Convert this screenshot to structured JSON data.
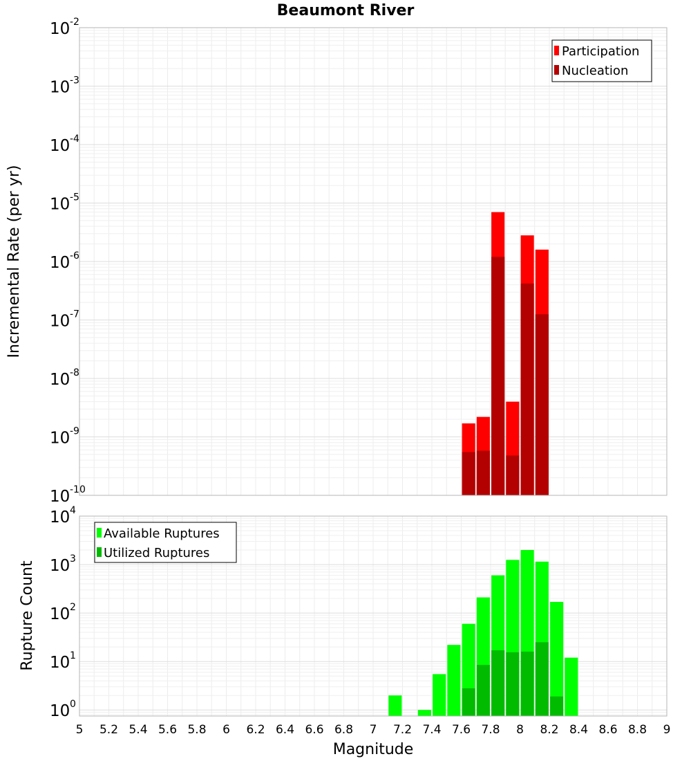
{
  "chart_data": [
    {
      "type": "bar",
      "title": "Beaumont River",
      "xlabel": "",
      "ylabel": "Incremental Rate (per yr)",
      "xlim": [
        5,
        9
      ],
      "ylim": [
        1e-10,
        0.01
      ],
      "yscale": "log",
      "grid": true,
      "legend_position": "top-right",
      "yticks": [
        {
          "base": "10",
          "exp": "-10",
          "value": 1e-10
        },
        {
          "base": "10",
          "exp": "-9",
          "value": 1e-09
        },
        {
          "base": "10",
          "exp": "-8",
          "value": 1e-08
        },
        {
          "base": "10",
          "exp": "-7",
          "value": 1e-07
        },
        {
          "base": "10",
          "exp": "-6",
          "value": 1e-06
        },
        {
          "base": "10",
          "exp": "-5",
          "value": 1e-05
        },
        {
          "base": "10",
          "exp": "-4",
          "value": 0.0001
        },
        {
          "base": "10",
          "exp": "-3",
          "value": 0.001
        },
        {
          "base": "10",
          "exp": "-2",
          "value": 0.01
        }
      ],
      "series": [
        {
          "name": "Participation",
          "color": "#ff0000",
          "x": [
            7.65,
            7.75,
            7.85,
            7.95,
            8.05,
            8.15
          ],
          "values": [
            1.7e-09,
            2.2e-09,
            7e-06,
            4e-09,
            2.8e-06,
            1.6e-06
          ]
        },
        {
          "name": "Nucleation",
          "color": "#b30000",
          "x": [
            7.65,
            7.75,
            7.85,
            7.95,
            8.05,
            8.15
          ],
          "values": [
            5.5e-10,
            5.8e-10,
            1.2e-06,
            4.8e-10,
            4.2e-07,
            1.25e-07
          ]
        }
      ]
    },
    {
      "type": "bar",
      "title": "",
      "xlabel": "Magnitude",
      "ylabel": "Rupture Count",
      "xlim": [
        5,
        9
      ],
      "ylim": [
        0.75,
        10000
      ],
      "yscale": "log",
      "grid": true,
      "legend_position": "top-left",
      "yticks": [
        {
          "base": "10",
          "exp": "0",
          "value": 1
        },
        {
          "base": "10",
          "exp": "1",
          "value": 10
        },
        {
          "base": "10",
          "exp": "2",
          "value": 100
        },
        {
          "base": "10",
          "exp": "3",
          "value": 1000
        },
        {
          "base": "10",
          "exp": "4",
          "value": 10000
        }
      ],
      "xticks": [
        "5",
        "5.2",
        "5.4",
        "5.6",
        "5.8",
        "6",
        "6.2",
        "6.4",
        "6.6",
        "6.8",
        "7",
        "7.2",
        "7.4",
        "7.6",
        "7.8",
        "8",
        "8.2",
        "8.4",
        "8.6",
        "8.8",
        "9"
      ],
      "series": [
        {
          "name": "Available Ruptures",
          "color": "#00ff00",
          "x": [
            7.15,
            7.35,
            7.45,
            7.55,
            7.65,
            7.75,
            7.85,
            7.95,
            8.05,
            8.15,
            8.25,
            8.35
          ],
          "values": [
            2,
            1,
            5.5,
            22,
            60,
            210,
            600,
            1250,
            2000,
            1150,
            170,
            12
          ]
        },
        {
          "name": "Utilized Ruptures",
          "color": "#00bb00",
          "x": [
            7.65,
            7.75,
            7.85,
            7.95,
            8.05,
            8.15,
            8.25
          ],
          "values": [
            2.8,
            8.5,
            17,
            15.5,
            16,
            25,
            1.9
          ]
        }
      ]
    }
  ]
}
